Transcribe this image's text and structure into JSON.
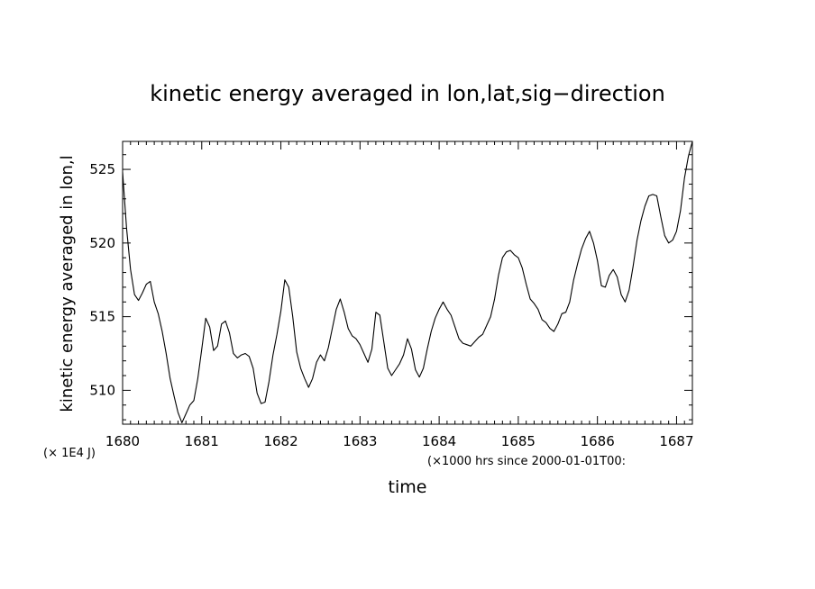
{
  "chart_data": {
    "type": "line",
    "title": "kinetic energy averaged in lon,lat,sig−direction",
    "xlabel": "time",
    "ylabel": "kinetic energy averaged in lon,l",
    "x_unit_note": "(×1000 hrs  since 2000-01-01T00:",
    "y_unit_note": "(× 1E4 J)",
    "xlim": [
      1680,
      1687.2
    ],
    "ylim": [
      507.7,
      526.9
    ],
    "x_ticks": [
      1680,
      1681,
      1682,
      1683,
      1684,
      1685,
      1686,
      1687
    ],
    "x_tick_labels": [
      "1680",
      "1681",
      "1682",
      "1683",
      "1684",
      "1685",
      "1686",
      "1687"
    ],
    "y_ticks": [
      510,
      515,
      520,
      525
    ],
    "y_tick_labels": [
      "510",
      "515",
      "520",
      "525"
    ],
    "grid": false,
    "series": [
      {
        "color": "#000000",
        "x": [
          1680.0,
          1680.05,
          1680.1,
          1680.15,
          1680.2,
          1680.25,
          1680.3,
          1680.35,
          1680.4,
          1680.45,
          1680.5,
          1680.55,
          1680.6,
          1680.65,
          1680.7,
          1680.75,
          1680.8,
          1680.85,
          1680.9,
          1680.95,
          1681.0,
          1681.05,
          1681.1,
          1681.15,
          1681.2,
          1681.25,
          1681.3,
          1681.35,
          1681.4,
          1681.45,
          1681.5,
          1681.55,
          1681.6,
          1681.65,
          1681.7,
          1681.75,
          1681.8,
          1681.85,
          1681.9,
          1681.95,
          1682.0,
          1682.05,
          1682.1,
          1682.15,
          1682.2,
          1682.25,
          1682.3,
          1682.35,
          1682.4,
          1682.45,
          1682.5,
          1682.55,
          1682.6,
          1682.65,
          1682.7,
          1682.75,
          1682.8,
          1682.85,
          1682.9,
          1682.95,
          1683.0,
          1683.05,
          1683.1,
          1683.15,
          1683.2,
          1683.25,
          1683.3,
          1683.35,
          1683.4,
          1683.45,
          1683.5,
          1683.55,
          1683.6,
          1683.65,
          1683.7,
          1683.75,
          1683.8,
          1683.85,
          1683.9,
          1683.95,
          1684.0,
          1684.05,
          1684.1,
          1684.15,
          1684.2,
          1684.25,
          1684.3,
          1684.35,
          1684.4,
          1684.45,
          1684.5,
          1684.55,
          1684.6,
          1684.65,
          1684.7,
          1684.75,
          1684.8,
          1684.85,
          1684.9,
          1684.95,
          1685.0,
          1685.05,
          1685.1,
          1685.15,
          1685.2,
          1685.25,
          1685.3,
          1685.35,
          1685.4,
          1685.45,
          1685.5,
          1685.55,
          1685.6,
          1685.65,
          1685.7,
          1685.75,
          1685.8,
          1685.85,
          1685.9,
          1685.95,
          1686.0,
          1686.05,
          1686.1,
          1686.15,
          1686.2,
          1686.25,
          1686.3,
          1686.35,
          1686.4,
          1686.45,
          1686.5,
          1686.55,
          1686.6,
          1686.65,
          1686.7,
          1686.75,
          1686.8,
          1686.85,
          1686.9,
          1686.95,
          1687.0,
          1687.05,
          1687.1,
          1687.15,
          1687.2
        ],
        "y": [
          524.8,
          521.0,
          518.2,
          516.5,
          516.1,
          516.6,
          517.2,
          517.4,
          516.0,
          515.2,
          514.0,
          512.5,
          510.8,
          509.6,
          508.5,
          507.8,
          508.4,
          509.0,
          509.3,
          510.8,
          512.8,
          514.9,
          514.3,
          512.7,
          513.0,
          514.5,
          514.7,
          513.9,
          512.5,
          512.2,
          512.4,
          512.5,
          512.3,
          511.5,
          509.8,
          509.1,
          509.2,
          510.6,
          512.4,
          513.8,
          515.4,
          517.5,
          517.0,
          515.0,
          512.6,
          511.5,
          510.8,
          510.2,
          510.8,
          511.9,
          512.4,
          512.0,
          512.9,
          514.2,
          515.5,
          516.2,
          515.3,
          514.2,
          513.7,
          513.5,
          513.1,
          512.5,
          511.9,
          512.8,
          515.3,
          515.1,
          513.3,
          511.5,
          511.0,
          511.4,
          511.8,
          512.4,
          513.5,
          512.8,
          511.4,
          510.9,
          511.5,
          512.8,
          514.0,
          514.9,
          515.5,
          516.0,
          515.5,
          515.1,
          514.3,
          513.5,
          513.2,
          513.1,
          513.0,
          513.3,
          513.6,
          513.8,
          514.4,
          515.0,
          516.2,
          517.8,
          519.0,
          519.4,
          519.5,
          519.2,
          519.0,
          518.3,
          517.2,
          516.2,
          515.9,
          515.5,
          514.8,
          514.6,
          514.2,
          514.0,
          514.5,
          515.2,
          515.3,
          516.0,
          517.5,
          518.6,
          519.6,
          520.3,
          520.8,
          520.0,
          518.8,
          517.1,
          517.0,
          517.8,
          518.2,
          517.7,
          516.5,
          516.0,
          516.8,
          518.4,
          520.2,
          521.5,
          522.5,
          523.2,
          523.3,
          523.2,
          521.8,
          520.5,
          520.0,
          520.2,
          520.8,
          522.2,
          524.4,
          525.9,
          526.9
        ]
      }
    ]
  }
}
